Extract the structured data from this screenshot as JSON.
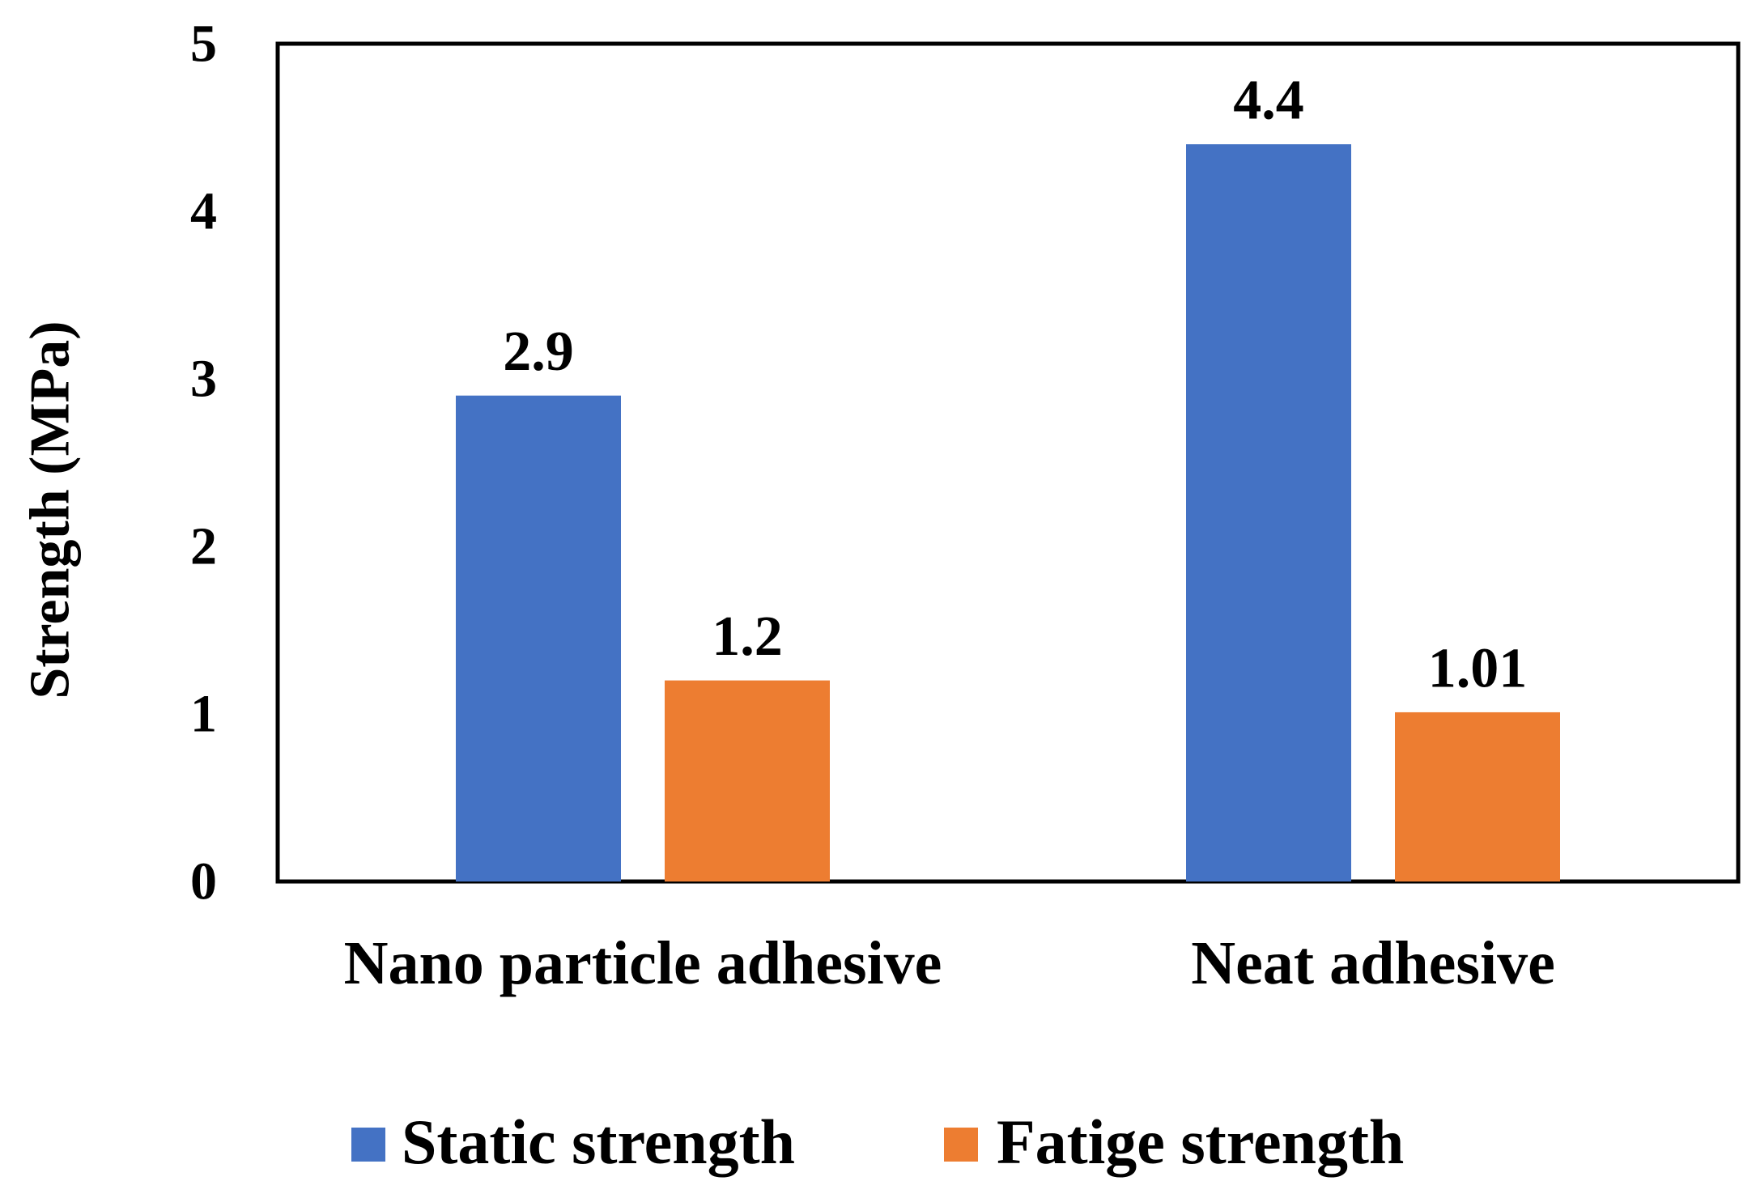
{
  "chart_data": {
    "type": "bar",
    "title": "",
    "xlabel": "",
    "ylabel": "Strength (MPa)",
    "ylim": [
      0,
      5
    ],
    "yticks": [
      0,
      1,
      2,
      3,
      4,
      5
    ],
    "categories": [
      "Nano particle adhesive",
      "Neat adhesive"
    ],
    "series": [
      {
        "name": "Static strength",
        "color": "#4472C4",
        "values": [
          2.9,
          4.4
        ],
        "labels": [
          "2.9",
          "4.4"
        ]
      },
      {
        "name": "Fatige strength",
        "color": "#ED7D31",
        "values": [
          1.2,
          1.01
        ],
        "labels": [
          "1.2",
          "1.01"
        ]
      }
    ],
    "grid": false,
    "legend_position": "bottom"
  }
}
